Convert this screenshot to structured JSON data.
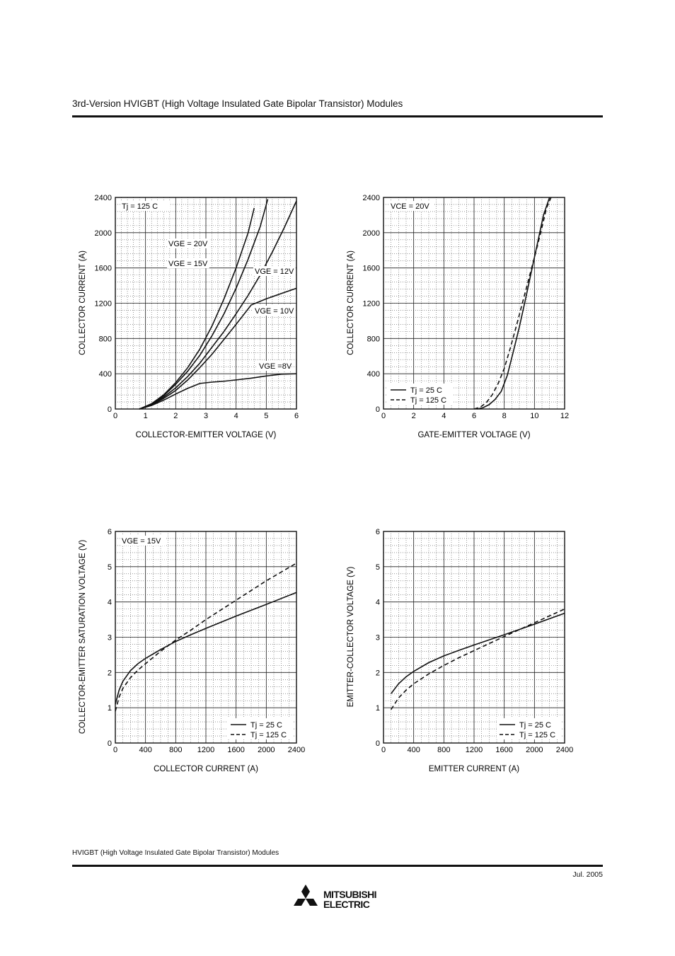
{
  "header": {
    "title": "3rd-Version HVIGBT (High Voltage Insulated Gate Bipolar Transistor) Modules"
  },
  "footer": {
    "text": "HVIGBT (High Voltage Insulated Gate Bipolar Transistor) Modules",
    "date": "Jul.  2005",
    "logo_line1": "MITSUBISHI",
    "logo_line2": "ELECTRIC"
  },
  "chart_data": [
    {
      "type": "line",
      "xlabel": "COLLECTOR-EMITTER VOLTAGE (V)",
      "ylabel": "COLLECTOR CURRENT (A)",
      "xlim": [
        0,
        6
      ],
      "ylim": [
        0,
        2400
      ],
      "xticks": [
        0,
        1,
        2,
        3,
        4,
        5,
        6
      ],
      "yticks": [
        0,
        400,
        800,
        1200,
        1600,
        2000,
        2400
      ],
      "annotation": "Tj = 125 C",
      "series": [
        {
          "name": "VGE = 20V",
          "dash": false,
          "x": [
            0.8,
            1.2,
            1.6,
            2,
            2.4,
            2.8,
            3.2,
            3.6,
            4,
            4.4,
            4.6
          ],
          "y": [
            0,
            60,
            160,
            300,
            470,
            680,
            940,
            1250,
            1600,
            2000,
            2280
          ]
        },
        {
          "name": "VGE = 15V",
          "dash": false,
          "x": [
            0.8,
            1.2,
            1.6,
            2,
            2.4,
            2.8,
            3.2,
            3.6,
            4,
            4.4,
            4.8,
            5.05
          ],
          "y": [
            0,
            55,
            150,
            280,
            430,
            610,
            830,
            1080,
            1370,
            1700,
            2070,
            2380
          ]
        },
        {
          "name": "VGE = 12V",
          "dash": false,
          "x": [
            0.8,
            1.2,
            1.6,
            2,
            2.4,
            2.8,
            3.2,
            3.6,
            4,
            4.4,
            4.8,
            5.2,
            5.6,
            6
          ],
          "y": [
            0,
            50,
            135,
            240,
            370,
            520,
            700,
            880,
            1080,
            1290,
            1520,
            1780,
            2060,
            2360
          ]
        },
        {
          "name": "VGE = 10V",
          "dash": false,
          "x": [
            0.8,
            1.2,
            1.6,
            2,
            2.4,
            2.8,
            3.2,
            3.6,
            4,
            4.5,
            5,
            5.5,
            6
          ],
          "y": [
            0,
            45,
            120,
            210,
            330,
            470,
            620,
            790,
            960,
            1180,
            1250,
            1310,
            1370
          ]
        },
        {
          "name": "VGE =8V",
          "dash": false,
          "x": [
            0.8,
            1.2,
            1.6,
            2,
            2.4,
            2.8,
            3.2,
            3.6,
            4,
            4.5,
            5,
            5.5,
            6
          ],
          "y": [
            0,
            40,
            100,
            170,
            235,
            290,
            305,
            315,
            330,
            350,
            375,
            395,
            400
          ]
        }
      ]
    },
    {
      "type": "line",
      "xlabel": "GATE-EMITTER VOLTAGE (V)",
      "ylabel": "COLLECTOR CURRENT (A)",
      "xlim": [
        0,
        12
      ],
      "ylim": [
        0,
        2400
      ],
      "xticks": [
        0,
        2,
        4,
        6,
        8,
        10,
        12
      ],
      "yticks": [
        0,
        400,
        800,
        1200,
        1600,
        2000,
        2400
      ],
      "annotation": "VCE = 20V",
      "legend": [
        "Tj = 25 C",
        "Tj = 125 C"
      ],
      "series": [
        {
          "name": "Tj = 25 C",
          "dash": false,
          "x": [
            6.2,
            6.6,
            7,
            7.4,
            7.8,
            8.2,
            8.6,
            9,
            9.4,
            9.8,
            10.2,
            10.6,
            11
          ],
          "y": [
            0,
            15,
            50,
            110,
            200,
            380,
            650,
            930,
            1240,
            1560,
            1880,
            2200,
            2400
          ]
        },
        {
          "name": "Tj = 125 C",
          "dash": true,
          "x": [
            6,
            6.4,
            6.8,
            7.2,
            7.6,
            8,
            8.4,
            8.8,
            9.2,
            9.6,
            10,
            10.4,
            10.8,
            11.1
          ],
          "y": [
            0,
            20,
            70,
            160,
            290,
            460,
            690,
            940,
            1200,
            1460,
            1720,
            1990,
            2280,
            2400
          ]
        }
      ]
    },
    {
      "type": "line",
      "xlabel": "COLLECTOR CURRENT (A)",
      "ylabel": "COLLECTOR-EMITTER SATURATION VOLTAGE (V)",
      "xlim": [
        0,
        2400
      ],
      "ylim": [
        0,
        6
      ],
      "xticks": [
        0,
        400,
        800,
        1200,
        1600,
        2000,
        2400
      ],
      "yticks": [
        0,
        1,
        2,
        3,
        4,
        5,
        6
      ],
      "annotation": "VGE = 15V",
      "legend": [
        "Tj = 25 C",
        "Tj = 125 C"
      ],
      "series": [
        {
          "name": "Tj = 25 C",
          "dash": false,
          "x": [
            0,
            50,
            100,
            200,
            300,
            400,
            600,
            800,
            1000,
            1200,
            1600,
            2000,
            2400
          ],
          "y": [
            1.1,
            1.5,
            1.75,
            2.05,
            2.25,
            2.4,
            2.65,
            2.88,
            3.07,
            3.25,
            3.6,
            3.93,
            4.27
          ]
        },
        {
          "name": "Tj = 125 C",
          "dash": true,
          "x": [
            0,
            50,
            100,
            200,
            300,
            400,
            600,
            800,
            1000,
            1200,
            1600,
            2000,
            2400
          ],
          "y": [
            0.9,
            1.3,
            1.55,
            1.85,
            2.07,
            2.25,
            2.6,
            2.92,
            3.2,
            3.5,
            4.05,
            4.6,
            5.1
          ]
        }
      ]
    },
    {
      "type": "line",
      "xlabel": "EMITTER CURRENT (A)",
      "ylabel": "EMITTER-COLLECTOR VOLTAGE (V)",
      "xlim": [
        0,
        2400
      ],
      "ylim": [
        0,
        6
      ],
      "xticks": [
        0,
        400,
        800,
        1200,
        1600,
        2000,
        2400
      ],
      "yticks": [
        0,
        1,
        2,
        3,
        4,
        5,
        6
      ],
      "legend": [
        "Tj = 25 C",
        "Tj = 125 C"
      ],
      "series": [
        {
          "name": "Tj = 25 C",
          "dash": false,
          "x": [
            100,
            200,
            300,
            400,
            600,
            800,
            1000,
            1200,
            1600,
            2000,
            2400
          ],
          "y": [
            1.4,
            1.68,
            1.88,
            2.03,
            2.28,
            2.47,
            2.63,
            2.78,
            3.07,
            3.37,
            3.68
          ]
        },
        {
          "name": "Tj = 125 C",
          "dash": true,
          "x": [
            100,
            200,
            300,
            400,
            600,
            800,
            1000,
            1200,
            1600,
            2000,
            2400
          ],
          "y": [
            0.95,
            1.28,
            1.5,
            1.68,
            1.96,
            2.2,
            2.42,
            2.62,
            3.02,
            3.41,
            3.8
          ]
        }
      ]
    }
  ]
}
